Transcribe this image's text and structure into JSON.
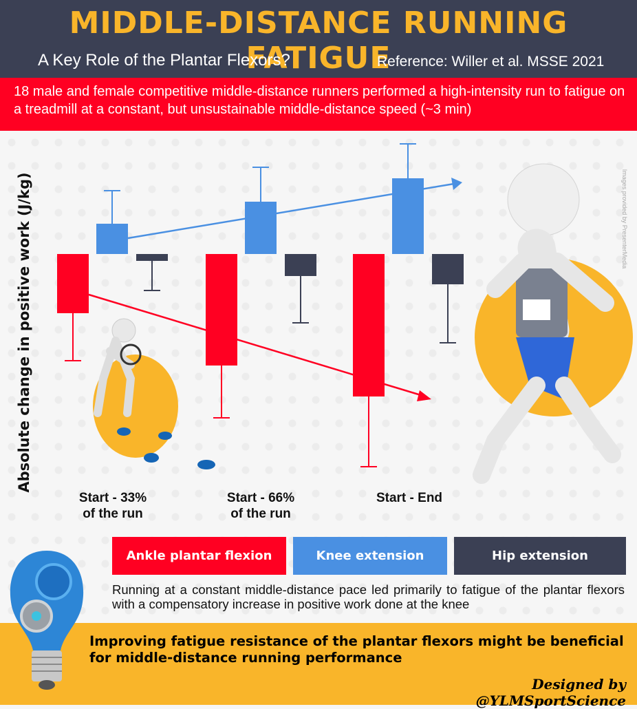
{
  "header": {
    "title": "Middle-Distance Running Fatigue",
    "subtitle": "A Key Role of the Plantar Flexors?",
    "reference": "Reference: Willer et al. MSSE 2021"
  },
  "intro": "18 male and female competitive middle-distance runners performed a high-intensity run to fatigue on a treadmill at a constant, but unsustainable middle-distance speed (~3 min)",
  "image_credit": "Images provided by PresenterMedia",
  "chart_data": {
    "type": "bar",
    "ylabel": "Absolute change in positive work (J/kg)",
    "categories": [
      "Start - 33% of the run",
      "Start - 66% of the run",
      "Start - End"
    ],
    "category_lines": [
      [
        "Start - 33%",
        "of the run"
      ],
      [
        "Start - 66%",
        "of the run"
      ],
      [
        "Start - End",
        ""
      ]
    ],
    "series": [
      {
        "name": "Ankle plantar flexion",
        "color": "#ff0022",
        "values": [
          -8.6,
          -16.2,
          -20.7
        ],
        "error": [
          6.9,
          7.6,
          10.2
        ],
        "trend": "decreasing"
      },
      {
        "name": "Knee extension",
        "color": "#4a90e2",
        "values": [
          4.4,
          7.6,
          11.0
        ],
        "error": [
          4.8,
          5.0,
          5.0
        ],
        "trend": "increasing"
      },
      {
        "name": "Hip extension",
        "color": "#3b4054",
        "values": [
          -1.0,
          -3.2,
          -4.4
        ],
        "error": [
          4.3,
          6.8,
          8.5
        ]
      }
    ],
    "value_units": "relative (no axis scale printed)",
    "grid": false,
    "legend": "bottom"
  },
  "legend": [
    "Ankle plantar flexion",
    "Knee extension",
    "Hip extension"
  ],
  "caption": "Running at a constant middle-distance pace led primarily to fatigue of the plantar flexors with a compensatory increase in positive work done at the knee",
  "conclusion": "Improving fatigue resistance of the plantar flexors might be beneficial for middle-distance running performance",
  "signature": "Designed by @YLMSportScience",
  "colors": {
    "dark": "#3b4054",
    "red": "#ff0022",
    "blue": "#4a90e2",
    "yellow": "#f9b52a"
  }
}
